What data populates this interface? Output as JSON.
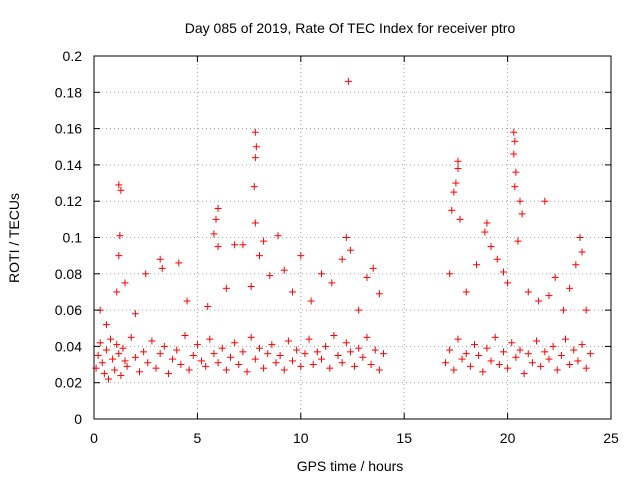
{
  "chart_data": {
    "type": "scatter",
    "title": "Day 085 of 2019, Rate Of TEC Index for receiver ptro",
    "xlabel": "GPS time / hours",
    "ylabel": "ROTI / TECUs",
    "xlim": [
      0,
      25
    ],
    "ylim": [
      0,
      0.2
    ],
    "x_ticks": [
      0,
      5,
      10,
      15,
      20,
      25
    ],
    "x_tick_labels": [
      "0",
      "5",
      "10",
      "15",
      "20",
      "25"
    ],
    "y_ticks": [
      0,
      0.02,
      0.04,
      0.06,
      0.08,
      0.1,
      0.12,
      0.14,
      0.16,
      0.18,
      0.2
    ],
    "y_tick_labels": [
      "0",
      "0.02",
      "0.04",
      "0.06",
      "0.08",
      "0.1",
      "0.12",
      "0.14",
      "0.16",
      "0.18",
      "0.2"
    ],
    "grid": true,
    "marker": "+",
    "series_color": "#ff0000",
    "data_gap_hours": [
      14.2,
      16.9
    ],
    "series": [
      {
        "name": "ROTI",
        "points": [
          [
            0.1,
            0.028
          ],
          [
            0.2,
            0.035
          ],
          [
            0.3,
            0.042
          ],
          [
            0.4,
            0.031
          ],
          [
            0.5,
            0.025
          ],
          [
            0.6,
            0.038
          ],
          [
            0.7,
            0.022
          ],
          [
            0.8,
            0.044
          ],
          [
            0.9,
            0.033
          ],
          [
            1.0,
            0.027
          ],
          [
            1.1,
            0.041
          ],
          [
            1.2,
            0.036
          ],
          [
            1.3,
            0.024
          ],
          [
            1.4,
            0.039
          ],
          [
            1.5,
            0.032
          ],
          [
            1.6,
            0.029
          ],
          [
            1.8,
            0.045
          ],
          [
            2.0,
            0.034
          ],
          [
            2.2,
            0.026
          ],
          [
            2.4,
            0.037
          ],
          [
            2.6,
            0.031
          ],
          [
            2.8,
            0.043
          ],
          [
            3.0,
            0.028
          ],
          [
            3.2,
            0.036
          ],
          [
            3.4,
            0.04
          ],
          [
            3.6,
            0.025
          ],
          [
            3.8,
            0.033
          ],
          [
            4.0,
            0.038
          ],
          [
            4.2,
            0.03
          ],
          [
            4.4,
            0.046
          ],
          [
            4.6,
            0.027
          ],
          [
            4.8,
            0.035
          ],
          [
            5.0,
            0.041
          ],
          [
            5.2,
            0.032
          ],
          [
            5.4,
            0.029
          ],
          [
            5.6,
            0.044
          ],
          [
            5.8,
            0.036
          ],
          [
            6.0,
            0.031
          ],
          [
            6.2,
            0.039
          ],
          [
            6.4,
            0.027
          ],
          [
            6.6,
            0.034
          ],
          [
            6.8,
            0.042
          ],
          [
            7.0,
            0.03
          ],
          [
            7.2,
            0.037
          ],
          [
            7.4,
            0.026
          ],
          [
            7.6,
            0.045
          ],
          [
            7.8,
            0.033
          ],
          [
            8.0,
            0.039
          ],
          [
            8.2,
            0.028
          ],
          [
            8.4,
            0.036
          ],
          [
            8.6,
            0.041
          ],
          [
            8.8,
            0.031
          ],
          [
            9.0,
            0.035
          ],
          [
            9.2,
            0.027
          ],
          [
            9.4,
            0.043
          ],
          [
            9.6,
            0.032
          ],
          [
            9.8,
            0.038
          ],
          [
            10.0,
            0.029
          ],
          [
            10.2,
            0.036
          ],
          [
            10.4,
            0.044
          ],
          [
            10.6,
            0.03
          ],
          [
            10.8,
            0.037
          ],
          [
            11.0,
            0.033
          ],
          [
            11.2,
            0.04
          ],
          [
            11.4,
            0.028
          ],
          [
            11.6,
            0.046
          ],
          [
            11.8,
            0.035
          ],
          [
            12.0,
            0.031
          ],
          [
            12.2,
            0.042
          ],
          [
            12.4,
            0.037
          ],
          [
            12.6,
            0.029
          ],
          [
            12.8,
            0.039
          ],
          [
            13.0,
            0.034
          ],
          [
            13.2,
            0.045
          ],
          [
            13.4,
            0.03
          ],
          [
            13.6,
            0.038
          ],
          [
            13.8,
            0.027
          ],
          [
            14.0,
            0.036
          ],
          [
            0.3,
            0.06
          ],
          [
            0.6,
            0.052
          ],
          [
            1.1,
            0.07
          ],
          [
            1.2,
            0.09
          ],
          [
            1.25,
            0.101
          ],
          [
            1.2,
            0.129
          ],
          [
            1.3,
            0.126
          ],
          [
            1.5,
            0.075
          ],
          [
            2.0,
            0.058
          ],
          [
            2.5,
            0.08
          ],
          [
            3.2,
            0.088
          ],
          [
            3.3,
            0.083
          ],
          [
            4.1,
            0.086
          ],
          [
            4.5,
            0.065
          ],
          [
            5.5,
            0.062
          ],
          [
            5.8,
            0.102
          ],
          [
            5.9,
            0.11
          ],
          [
            6.0,
            0.116
          ],
          [
            6.0,
            0.095
          ],
          [
            6.4,
            0.072
          ],
          [
            6.8,
            0.096
          ],
          [
            7.2,
            0.096
          ],
          [
            7.6,
            0.073
          ],
          [
            7.8,
            0.158
          ],
          [
            7.85,
            0.15
          ],
          [
            7.8,
            0.144
          ],
          [
            7.75,
            0.128
          ],
          [
            7.8,
            0.108
          ],
          [
            8.0,
            0.09
          ],
          [
            8.2,
            0.098
          ],
          [
            8.5,
            0.079
          ],
          [
            8.9,
            0.101
          ],
          [
            9.2,
            0.082
          ],
          [
            9.6,
            0.07
          ],
          [
            10.0,
            0.09
          ],
          [
            10.5,
            0.065
          ],
          [
            11.0,
            0.08
          ],
          [
            11.5,
            0.075
          ],
          [
            12.0,
            0.088
          ],
          [
            12.2,
            0.1
          ],
          [
            12.4,
            0.093
          ],
          [
            12.3,
            0.186
          ],
          [
            12.8,
            0.06
          ],
          [
            13.2,
            0.078
          ],
          [
            13.5,
            0.083
          ],
          [
            13.8,
            0.069
          ],
          [
            17.0,
            0.031
          ],
          [
            17.2,
            0.038
          ],
          [
            17.4,
            0.027
          ],
          [
            17.6,
            0.044
          ],
          [
            17.8,
            0.033
          ],
          [
            18.0,
            0.036
          ],
          [
            18.2,
            0.029
          ],
          [
            18.4,
            0.041
          ],
          [
            18.6,
            0.035
          ],
          [
            18.8,
            0.026
          ],
          [
            19.0,
            0.039
          ],
          [
            19.2,
            0.032
          ],
          [
            19.4,
            0.045
          ],
          [
            19.6,
            0.03
          ],
          [
            19.8,
            0.037
          ],
          [
            20.0,
            0.028
          ],
          [
            20.2,
            0.042
          ],
          [
            20.4,
            0.034
          ],
          [
            20.6,
            0.038
          ],
          [
            20.8,
            0.025
          ],
          [
            21.0,
            0.036
          ],
          [
            21.2,
            0.031
          ],
          [
            21.4,
            0.043
          ],
          [
            21.6,
            0.029
          ],
          [
            21.8,
            0.037
          ],
          [
            22.0,
            0.033
          ],
          [
            22.2,
            0.04
          ],
          [
            22.4,
            0.027
          ],
          [
            22.6,
            0.035
          ],
          [
            22.8,
            0.044
          ],
          [
            23.0,
            0.03
          ],
          [
            23.2,
            0.038
          ],
          [
            23.4,
            0.032
          ],
          [
            23.6,
            0.041
          ],
          [
            23.8,
            0.028
          ],
          [
            24.0,
            0.036
          ],
          [
            17.2,
            0.08
          ],
          [
            17.3,
            0.115
          ],
          [
            17.4,
            0.125
          ],
          [
            17.5,
            0.13
          ],
          [
            17.6,
            0.142
          ],
          [
            17.6,
            0.138
          ],
          [
            17.7,
            0.11
          ],
          [
            18.0,
            0.07
          ],
          [
            18.5,
            0.085
          ],
          [
            18.9,
            0.103
          ],
          [
            19.0,
            0.108
          ],
          [
            19.2,
            0.095
          ],
          [
            19.5,
            0.088
          ],
          [
            19.8,
            0.081
          ],
          [
            20.0,
            0.075
          ],
          [
            20.3,
            0.158
          ],
          [
            20.35,
            0.153
          ],
          [
            20.3,
            0.146
          ],
          [
            20.4,
            0.136
          ],
          [
            20.35,
            0.128
          ],
          [
            20.6,
            0.12
          ],
          [
            20.7,
            0.113
          ],
          [
            20.5,
            0.098
          ],
          [
            21.0,
            0.07
          ],
          [
            21.5,
            0.065
          ],
          [
            21.8,
            0.12
          ],
          [
            22.0,
            0.068
          ],
          [
            22.3,
            0.078
          ],
          [
            22.7,
            0.06
          ],
          [
            23.0,
            0.072
          ],
          [
            23.3,
            0.085
          ],
          [
            23.5,
            0.1
          ],
          [
            23.6,
            0.092
          ],
          [
            23.8,
            0.06
          ]
        ]
      }
    ]
  }
}
